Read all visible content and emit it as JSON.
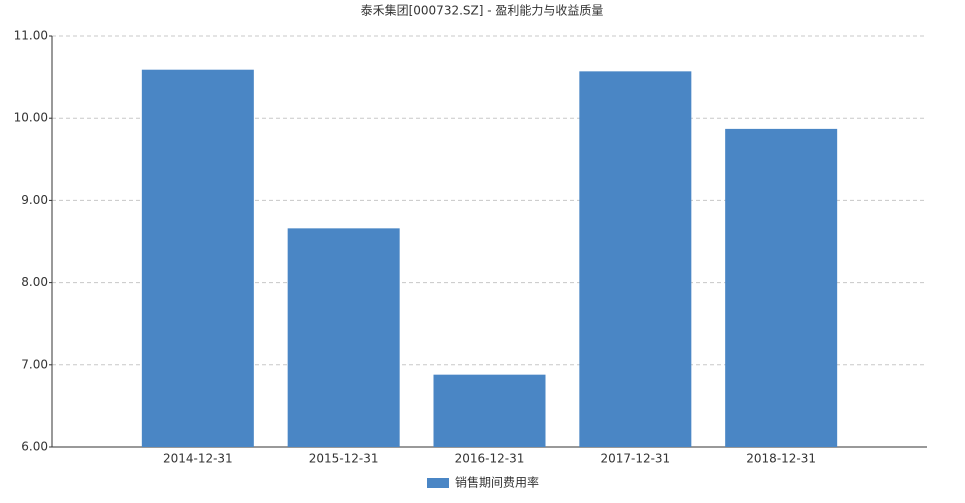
{
  "chart_data": {
    "type": "bar",
    "title": "泰禾集团[000732.SZ] - 盈利能力与收益质量",
    "categories": [
      "2014-12-31",
      "2015-12-31",
      "2016-12-31",
      "2017-12-31",
      "2018-12-31"
    ],
    "series": [
      {
        "name": "销售期间费用率",
        "color": "#4a86c5",
        "values": [
          10.59,
          8.66,
          6.88,
          10.57,
          9.87
        ]
      }
    ],
    "ylim": [
      6,
      11
    ],
    "yticks": [
      {
        "value": 6,
        "label": "6.00"
      },
      {
        "value": 7,
        "label": "7.00"
      },
      {
        "value": 8,
        "label": "8.00"
      },
      {
        "value": 9,
        "label": "9.00"
      },
      {
        "value": 10,
        "label": "10.00"
      },
      {
        "value": 11,
        "label": "11.00"
      }
    ],
    "grid": true,
    "legend": "bottom"
  }
}
